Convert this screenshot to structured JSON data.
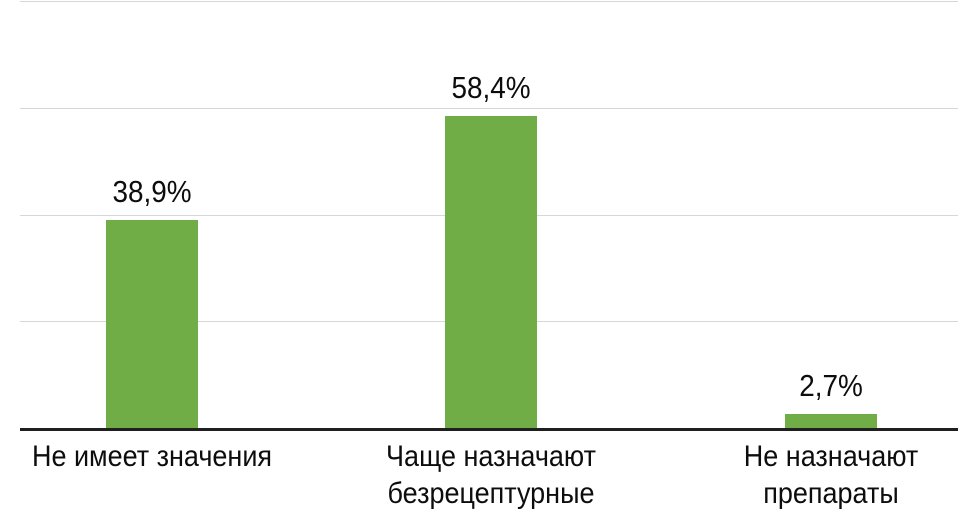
{
  "chart_data": {
    "type": "bar",
    "title": "",
    "xlabel": "",
    "ylabel": "",
    "categories": [
      "Не имеет значения",
      "Чаще назначают безрецептурные",
      "Не назначают препараты"
    ],
    "categories_wrapped": [
      "Не имеет значения",
      "Чаще назначают\nбезрецептурные",
      "Не назначают\nпрепараты"
    ],
    "values": [
      38.9,
      58.4,
      2.7
    ],
    "value_labels": [
      "38,9%",
      "58,4%",
      "2,7%"
    ],
    "ylim": [
      0,
      80
    ],
    "gridline_step": 20,
    "grid": true,
    "legend": false,
    "y_tick_labels_visible": false,
    "bar_color": "#70AD47",
    "gridline_color": "#D7D7D7",
    "axis_color": "#1F1F1F",
    "label_color": "#0D0D0D"
  }
}
